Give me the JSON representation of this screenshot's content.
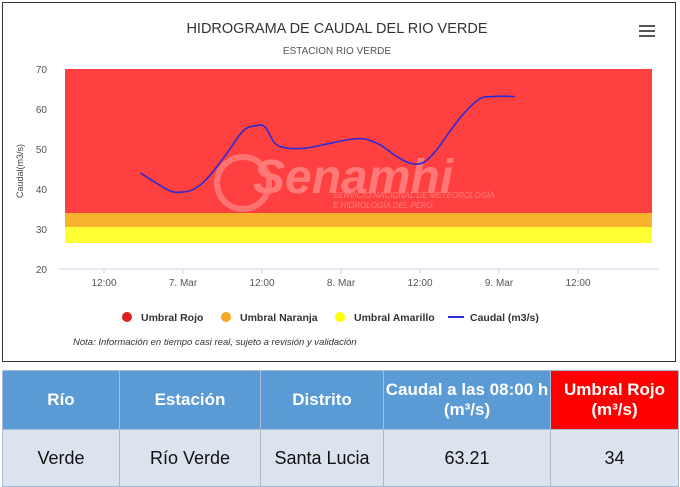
{
  "chart_data": {
    "type": "line",
    "title": "HIDROGRAMA DE CAUDAL DEL RIO VERDE",
    "subtitle": "ESTACION RIO VERDE",
    "ylabel": "Caudal(m3/s)",
    "ylim": [
      20,
      70
    ],
    "yticks": [
      "70",
      "60",
      "50",
      "40",
      "30",
      "20"
    ],
    "xticks": [
      "12:00",
      "7. Mar",
      "12:00",
      "8. Mar",
      "12:00",
      "9. Mar",
      "12:00"
    ],
    "bands": [
      {
        "name": "Umbral Rojo",
        "from": 34,
        "to": 70,
        "color": "#ff4040"
      },
      {
        "name": "Umbral Naranja",
        "from": 30.5,
        "to": 34,
        "color": "#f7b32b"
      },
      {
        "name": "Umbral Amarillo",
        "from": 26.5,
        "to": 30.5,
        "color": "#ffff33"
      }
    ],
    "series": [
      {
        "name": "Caudal (m3/s)",
        "color": "#2b2bd6",
        "x": [
          -0.27,
          -0.17,
          -0.08,
          -0.02,
          0.06,
          0.15,
          0.27,
          0.38,
          0.46,
          0.52,
          0.58,
          0.65,
          0.77,
          0.88,
          1.0,
          1.08,
          1.15,
          1.25,
          1.35,
          1.44,
          1.52,
          1.6,
          1.7,
          1.78,
          1.88,
          1.96,
          2.03,
          2.1
        ],
        "y": [
          44,
          41.5,
          39.5,
          39.2,
          39.8,
          42.5,
          48.5,
          54.5,
          55.8,
          55.5,
          51.5,
          50.3,
          50.2,
          51,
          52,
          52.5,
          52.5,
          51,
          48.2,
          46.4,
          46.6,
          49.5,
          55,
          59,
          62.6,
          63.1,
          63.2,
          63.1
        ]
      }
    ],
    "legend": [
      {
        "label": "Umbral Rojo",
        "color": "#e02020"
      },
      {
        "label": "Umbral Naranja",
        "color": "#f5a623"
      },
      {
        "label": "Umbral Amarillo",
        "color": "#ffff00"
      },
      {
        "label": "Caudal (m3/s)",
        "color": "#2b2bd6"
      }
    ],
    "legend_position": "bottom",
    "watermark": "Senamhi SERVICIO NACIONAL DE METEOROLOGÍA E HIDROLOGÍA DEL PERÚ"
  },
  "note": "Nota: Información en tiempo casi real, sujeto a revisión y validación",
  "table": {
    "headers": [
      "Río",
      "Estación",
      "Distrito",
      "Caudal a las 08:00 h (m³/s)",
      "Umbral Rojo (m³/s)"
    ],
    "row": [
      "Verde",
      "Río Verde",
      "Santa Lucia",
      "63.21",
      "34"
    ]
  }
}
